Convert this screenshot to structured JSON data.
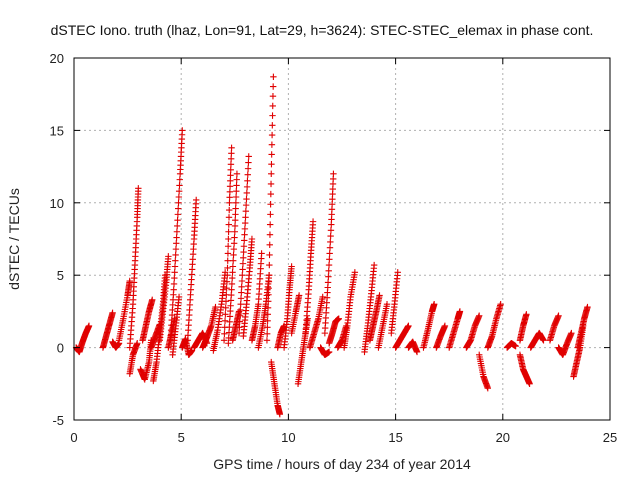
{
  "chart_data": {
    "type": "scatter",
    "title": "dSTEC Iono. truth (lhaz, Lon=91, Lat=29, h=3624): STEC-STEC_elemax in phase cont.",
    "xlabel": "GPS time / hours of day 234 of year 2014",
    "ylabel": "dSTEC  / TECUs",
    "xlim": [
      0,
      25
    ],
    "ylim": [
      -5,
      20
    ],
    "xticks": [
      0,
      5,
      10,
      15,
      20,
      25
    ],
    "yticks": [
      -5,
      0,
      5,
      10,
      15,
      20
    ],
    "grid": true,
    "marker": "plus",
    "color": "#e00000",
    "arcs": [
      {
        "x": [
          0.1,
          0.25,
          0.4,
          0.55,
          0.7
        ],
        "y": [
          0.0,
          -0.3,
          0.4,
          1.0,
          1.5
        ]
      },
      {
        "x": [
          1.35,
          1.5,
          1.65,
          1.8
        ],
        "y": [
          0.0,
          0.8,
          1.6,
          2.4
        ]
      },
      {
        "x": [
          1.8,
          1.95,
          2.1
        ],
        "y": [
          0.4,
          0.0,
          0.3
        ]
      },
      {
        "x": [
          2.1,
          2.3,
          2.5,
          2.6
        ],
        "y": [
          0.5,
          2.0,
          3.6,
          4.6
        ]
      },
      {
        "x": [
          2.6,
          2.75,
          2.95
        ],
        "y": [
          -1.8,
          -0.5,
          0.3
        ]
      },
      {
        "x": [
          2.6,
          2.75,
          2.85,
          2.95,
          3.0
        ],
        "y": [
          0.0,
          3.0,
          6.0,
          9.0,
          11.0
        ]
      },
      {
        "x": [
          3.1,
          3.3,
          3.5,
          3.6
        ],
        "y": [
          -1.5,
          -2.2,
          -1.0,
          0.5
        ]
      },
      {
        "x": [
          3.2,
          3.35,
          3.5,
          3.65
        ],
        "y": [
          0.5,
          1.5,
          2.5,
          3.3
        ]
      },
      {
        "x": [
          3.6,
          3.8,
          4.0
        ],
        "y": [
          0.0,
          0.8,
          1.6
        ]
      },
      {
        "x": [
          3.7,
          3.85,
          4.0,
          4.15,
          4.25
        ],
        "y": [
          -2.3,
          -1.0,
          1.0,
          3.0,
          5.0
        ]
      },
      {
        "x": [
          4.0,
          4.15,
          4.3,
          4.4
        ],
        "y": [
          0.5,
          2.5,
          4.5,
          6.3
        ]
      },
      {
        "x": [
          4.4,
          4.55,
          4.7
        ],
        "y": [
          0.0,
          1.0,
          2.0
        ]
      },
      {
        "x": [
          4.5,
          4.65,
          4.8,
          4.95,
          5.05
        ],
        "y": [
          0.5,
          4.0,
          8.0,
          12.0,
          15.0
        ]
      },
      {
        "x": [
          4.6,
          4.75,
          4.9
        ],
        "y": [
          -0.5,
          1.5,
          3.5
        ]
      },
      {
        "x": [
          5.05,
          5.2,
          5.35,
          5.5
        ],
        "y": [
          0.0,
          0.6,
          -0.5,
          -0.2
        ]
      },
      {
        "x": [
          5.3,
          5.45,
          5.6,
          5.7
        ],
        "y": [
          0.5,
          4.0,
          7.5,
          10.2
        ]
      },
      {
        "x": [
          5.6,
          5.8,
          6.0,
          6.2
        ],
        "y": [
          0.0,
          0.5,
          1.0,
          0.3
        ]
      },
      {
        "x": [
          6.0,
          6.2,
          6.4,
          6.6
        ],
        "y": [
          0.0,
          0.7,
          1.5,
          2.8
        ]
      },
      {
        "x": [
          6.5,
          6.7,
          6.9,
          7.05
        ],
        "y": [
          -0.2,
          1.2,
          3.2,
          5.2
        ]
      },
      {
        "x": [
          7.0,
          7.15,
          7.25,
          7.35
        ],
        "y": [
          0.5,
          5.0,
          10.0,
          13.8
        ]
      },
      {
        "x": [
          7.2,
          7.35,
          7.5,
          7.6
        ],
        "y": [
          0.3,
          4.0,
          8.0,
          12.0
        ]
      },
      {
        "x": [
          7.4,
          7.55,
          7.7
        ],
        "y": [
          0.5,
          1.5,
          2.5
        ]
      },
      {
        "x": [
          7.7,
          7.85,
          8.0,
          8.15
        ],
        "y": [
          1.0,
          5.0,
          9.0,
          13.2
        ]
      },
      {
        "x": [
          7.9,
          8.05,
          8.2,
          8.3
        ],
        "y": [
          0.8,
          3.0,
          5.5,
          7.5
        ]
      },
      {
        "x": [
          8.3,
          8.45,
          8.6,
          8.75
        ],
        "y": [
          0.5,
          1.5,
          3.0,
          6.5
        ]
      },
      {
        "x": [
          8.6,
          8.8,
          8.95,
          9.1
        ],
        "y": [
          0.0,
          1.5,
          3.0,
          5.0
        ]
      },
      {
        "x": [
          9.0,
          9.1,
          9.2,
          9.3
        ],
        "y": [
          0.5,
          5.0,
          12.0,
          18.7
        ]
      },
      {
        "x": [
          9.2,
          9.35,
          9.5,
          9.6
        ],
        "y": [
          -1.0,
          -2.5,
          -4.0,
          -4.6
        ]
      },
      {
        "x": [
          9.5,
          9.65,
          9.8
        ],
        "y": [
          0.0,
          1.0,
          1.5
        ]
      },
      {
        "x": [
          9.8,
          9.95,
          10.05,
          10.15
        ],
        "y": [
          0.0,
          2.0,
          4.0,
          5.6
        ]
      },
      {
        "x": [
          10.15,
          10.35,
          10.5
        ],
        "y": [
          1.0,
          2.5,
          3.6
        ]
      },
      {
        "x": [
          10.45,
          10.6,
          10.75,
          10.9
        ],
        "y": [
          -2.5,
          -1.0,
          0.5,
          2.0
        ]
      },
      {
        "x": [
          10.8,
          10.95,
          11.05,
          11.15
        ],
        "y": [
          1.0,
          4.0,
          6.5,
          8.7
        ]
      },
      {
        "x": [
          11.0,
          11.2,
          11.4,
          11.6
        ],
        "y": [
          0.0,
          1.0,
          2.0,
          3.5
        ]
      },
      {
        "x": [
          11.5,
          11.7,
          11.9
        ],
        "y": [
          0.0,
          -0.5,
          -0.3
        ]
      },
      {
        "x": [
          11.7,
          11.85,
          12.0,
          12.1
        ],
        "y": [
          1.0,
          4.5,
          8.5,
          12.0
        ]
      },
      {
        "x": [
          11.9,
          12.05,
          12.2,
          12.35
        ],
        "y": [
          0.3,
          1.0,
          1.8,
          2.0
        ]
      },
      {
        "x": [
          12.3,
          12.5,
          12.7
        ],
        "y": [
          0.0,
          0.5,
          1.5
        ]
      },
      {
        "x": [
          12.6,
          12.75,
          12.9,
          13.1
        ],
        "y": [
          0.0,
          1.5,
          3.5,
          5.2
        ]
      },
      {
        "x": [
          13.55,
          13.7,
          13.85,
          14.0
        ],
        "y": [
          -0.3,
          1.5,
          3.5,
          5.7
        ]
      },
      {
        "x": [
          13.8,
          13.95,
          14.1,
          14.25
        ],
        "y": [
          0.5,
          1.5,
          2.5,
          3.6
        ]
      },
      {
        "x": [
          14.2,
          14.4,
          14.6
        ],
        "y": [
          0.0,
          1.5,
          3.0
        ]
      },
      {
        "x": [
          14.8,
          14.95,
          15.1
        ],
        "y": [
          1.0,
          3.0,
          5.2
        ]
      },
      {
        "x": [
          15.0,
          15.2,
          15.4,
          15.6
        ],
        "y": [
          0.0,
          0.5,
          1.0,
          1.5
        ]
      },
      {
        "x": [
          15.6,
          15.8,
          16.0
        ],
        "y": [
          0.0,
          0.4,
          -0.3
        ]
      },
      {
        "x": [
          16.3,
          16.5,
          16.7,
          16.8
        ],
        "y": [
          0.0,
          1.2,
          2.5,
          3.0
        ]
      },
      {
        "x": [
          16.9,
          17.1,
          17.3
        ],
        "y": [
          0.0,
          0.8,
          1.5
        ]
      },
      {
        "x": [
          17.5,
          17.7,
          17.9,
          18.0
        ],
        "y": [
          0.0,
          1.0,
          2.0,
          2.5
        ]
      },
      {
        "x": [
          18.3,
          18.5,
          18.7,
          18.9
        ],
        "y": [
          0.0,
          0.5,
          1.5,
          2.2
        ]
      },
      {
        "x": [
          18.9,
          19.1,
          19.3
        ],
        "y": [
          -0.5,
          -2.0,
          -2.8
        ]
      },
      {
        "x": [
          19.3,
          19.5,
          19.7,
          19.9
        ],
        "y": [
          0.0,
          0.8,
          2.0,
          3.0
        ]
      },
      {
        "x": [
          20.2,
          20.4,
          20.6
        ],
        "y": [
          0.0,
          0.3,
          0.1
        ]
      },
      {
        "x": [
          20.8,
          20.95,
          21.1,
          21.25
        ],
        "y": [
          -0.5,
          -1.5,
          -2.0,
          -2.5
        ]
      },
      {
        "x": [
          20.8,
          20.95,
          21.1
        ],
        "y": [
          0.5,
          1.5,
          2.3
        ]
      },
      {
        "x": [
          21.3,
          21.5,
          21.7,
          21.9
        ],
        "y": [
          0.0,
          0.5,
          1.0,
          0.5
        ]
      },
      {
        "x": [
          22.2,
          22.4,
          22.6
        ],
        "y": [
          0.5,
          1.5,
          2.2
        ]
      },
      {
        "x": [
          22.6,
          22.8,
          23.0,
          23.2
        ],
        "y": [
          0.0,
          -0.5,
          0.3,
          1.0
        ]
      },
      {
        "x": [
          23.3,
          23.45,
          23.6,
          23.75
        ],
        "y": [
          -2.0,
          -1.0,
          0.0,
          1.5
        ]
      },
      {
        "x": [
          23.5,
          23.65,
          23.8,
          23.95
        ],
        "y": [
          0.0,
          1.0,
          2.0,
          2.8
        ]
      }
    ]
  }
}
